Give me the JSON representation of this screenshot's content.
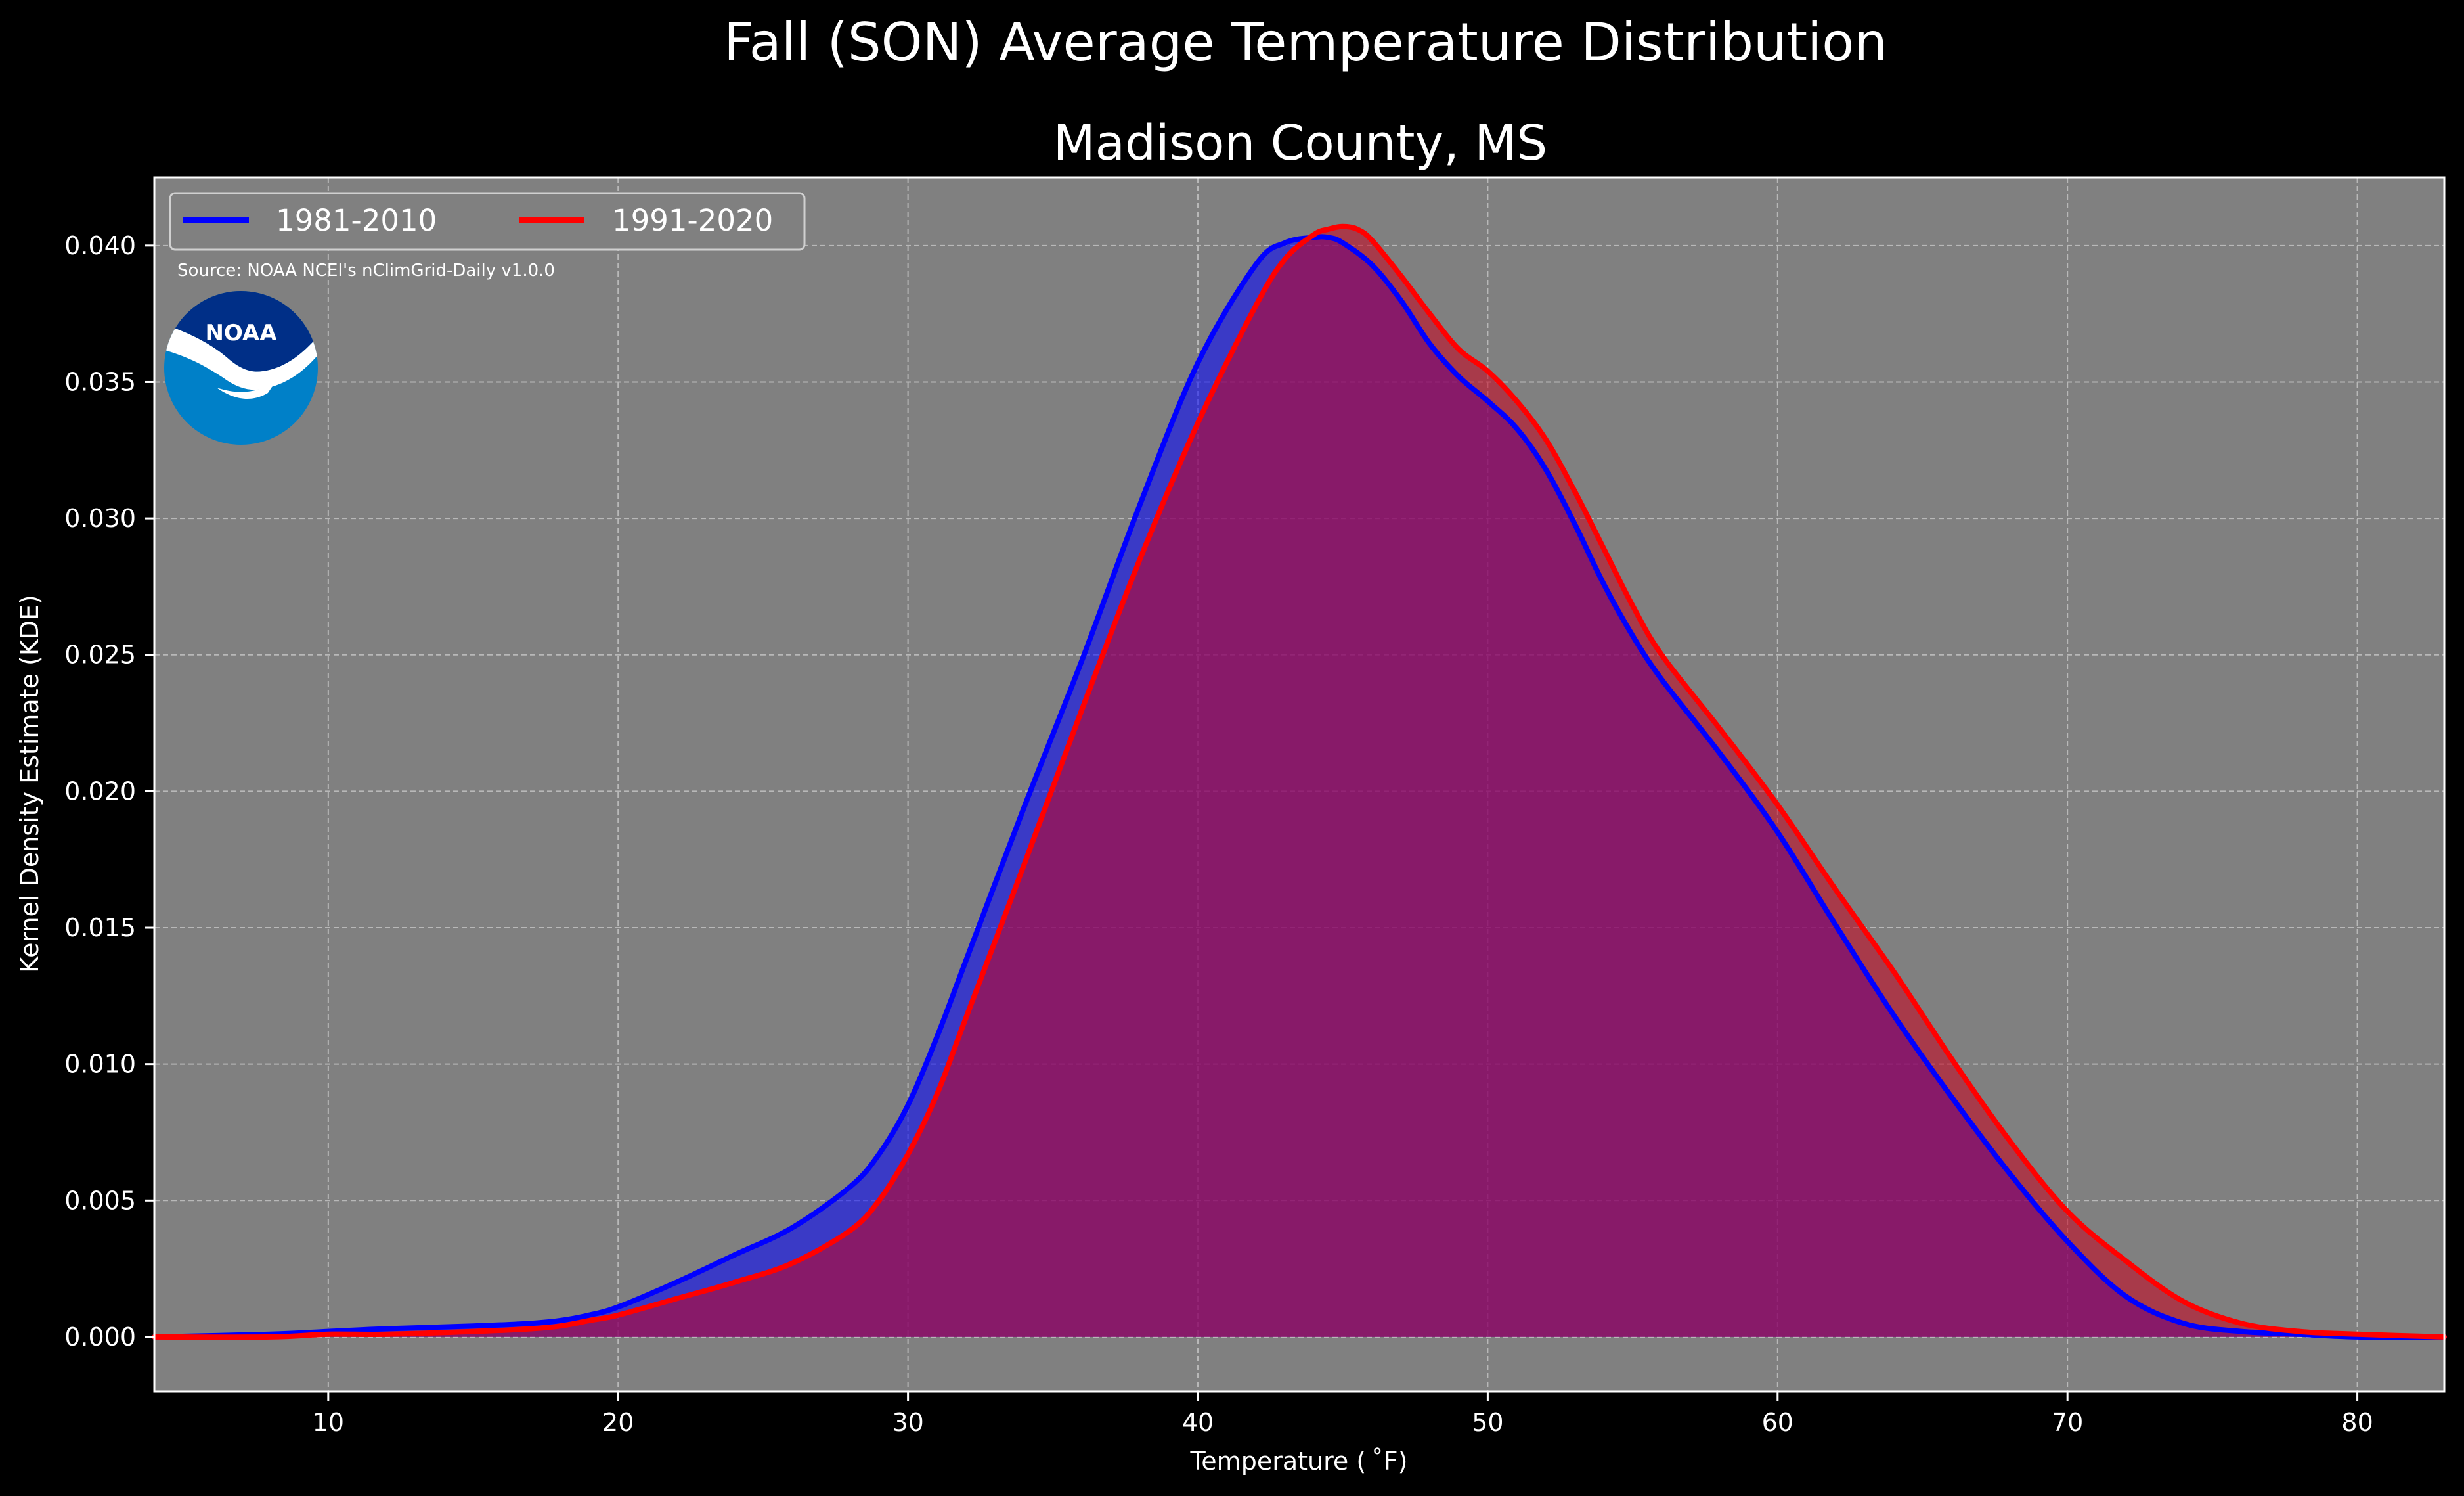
{
  "chart_data": {
    "type": "area",
    "title": "Fall (SON) Average Temperature Distribution",
    "subtitle": "Madison County, MS",
    "xlabel": "Temperature ( ˚F)",
    "ylabel": "Kernel Density Estimate (KDE)",
    "xlim": [
      4,
      83
    ],
    "ylim": [
      -0.002,
      0.0425
    ],
    "xticks": [
      10,
      20,
      30,
      40,
      50,
      60,
      70,
      80
    ],
    "yticks": [
      0.0,
      0.005,
      0.01,
      0.015,
      0.02,
      0.025,
      0.03,
      0.035,
      0.04
    ],
    "ytick_labels": [
      "0.000",
      "0.005",
      "0.010",
      "0.015",
      "0.020",
      "0.025",
      "0.030",
      "0.035",
      "0.040"
    ],
    "grid": true,
    "legend_placement": "top-left",
    "background": "#808080",
    "annotation": "Source: NOAA NCEI's nClimGrid-Daily v1.0.0",
    "logo_text": "NOAA",
    "series": [
      {
        "name": "1981-2010",
        "color": "#0000ff",
        "fill": "#0000ff",
        "x": [
          4,
          8,
          10,
          12,
          15,
          17,
          18,
          19,
          20,
          22,
          24,
          26,
          28,
          29,
          30,
          31,
          32,
          34,
          36,
          38,
          40,
          42,
          43,
          44,
          44.5,
          45,
          46,
          47,
          48,
          49,
          50,
          51,
          52,
          53,
          54,
          55,
          56,
          58,
          60,
          62,
          64,
          66,
          68,
          70,
          72,
          74,
          76,
          78,
          80,
          83
        ],
        "y": [
          0.0,
          0.0001,
          0.0002,
          0.0003,
          0.0004,
          0.0005,
          0.0006,
          0.0008,
          0.0011,
          0.002,
          0.003,
          0.004,
          0.0055,
          0.0067,
          0.0085,
          0.011,
          0.0138,
          0.0194,
          0.0248,
          0.0305,
          0.0357,
          0.0393,
          0.0401,
          0.0403,
          0.0403,
          0.0401,
          0.0393,
          0.038,
          0.0364,
          0.0352,
          0.0343,
          0.0333,
          0.0318,
          0.0298,
          0.0276,
          0.0257,
          0.0241,
          0.0214,
          0.0185,
          0.0151,
          0.0118,
          0.0088,
          0.006,
          0.0035,
          0.0015,
          0.0005,
          0.0002,
          0.0001,
          0.0,
          0.0
        ]
      },
      {
        "name": "1991-2020",
        "color": "#ff0000",
        "fill": "#c8001e",
        "x": [
          4,
          8,
          10,
          12,
          15,
          17,
          18,
          19,
          20,
          22,
          24,
          26,
          28,
          29,
          30,
          31,
          32,
          34,
          36,
          38,
          40,
          42,
          43,
          44,
          44.5,
          45,
          45.5,
          46,
          47,
          48,
          49,
          50,
          51,
          52,
          53,
          54,
          55,
          56,
          58,
          60,
          62,
          64,
          66,
          68,
          70,
          72,
          74,
          76,
          78,
          80,
          83
        ],
        "y": [
          0.0,
          0.0,
          0.0001,
          0.0001,
          0.0002,
          0.0003,
          0.0004,
          0.0006,
          0.0008,
          0.0014,
          0.002,
          0.0027,
          0.0039,
          0.005,
          0.0067,
          0.0089,
          0.0117,
          0.0173,
          0.023,
          0.0285,
          0.0335,
          0.0378,
          0.0395,
          0.0404,
          0.0406,
          0.0407,
          0.0406,
          0.0402,
          0.0389,
          0.0375,
          0.0362,
          0.0354,
          0.0343,
          0.0329,
          0.031,
          0.0289,
          0.0268,
          0.025,
          0.0223,
          0.0195,
          0.0164,
          0.0134,
          0.0102,
          0.0072,
          0.0046,
          0.0028,
          0.0013,
          0.0005,
          0.0002,
          0.0001,
          0.0
        ]
      }
    ]
  }
}
